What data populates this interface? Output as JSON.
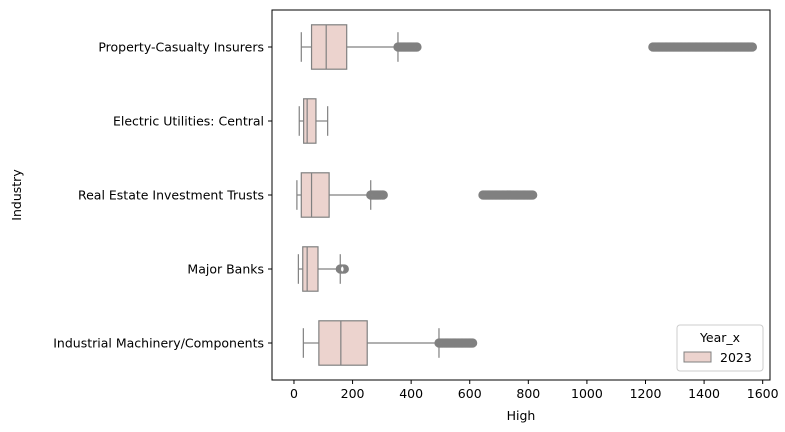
{
  "chart_data": {
    "type": "boxplot",
    "orientation": "horizontal",
    "xlabel": "High",
    "ylabel": "Industry",
    "xlim": [
      -75,
      1625
    ],
    "xticks": [
      0,
      200,
      400,
      600,
      800,
      1000,
      1200,
      1400,
      1600
    ],
    "grid": false,
    "legend": {
      "title": "Year_x",
      "placement": "lower-right",
      "entries": [
        {
          "label": "2023",
          "color": "#ecd3ce"
        }
      ]
    },
    "box_color": "#ecd3ce",
    "line_color": "#808080",
    "series": [
      {
        "name": "2023",
        "categories": [
          {
            "label": "Property-Casualty Insurers",
            "whisker_low": 25,
            "q1": 60,
            "median": 110,
            "q3": 180,
            "whisker_high": 355,
            "outlier_ranges": [
              [
                355,
                420
              ],
              [
                1225,
                1565
              ]
            ]
          },
          {
            "label": "Electric Utilities: Central",
            "whisker_low": 18,
            "q1": 33,
            "median": 45,
            "q3": 75,
            "whisker_high": 115,
            "outlier_ranges": []
          },
          {
            "label": "Real Estate Investment Trusts",
            "whisker_low": 10,
            "q1": 25,
            "median": 60,
            "q3": 120,
            "whisker_high": 262,
            "outlier_ranges": [
              [
                262,
                305
              ],
              [
                645,
                815
              ]
            ]
          },
          {
            "label": "Major Banks",
            "whisker_low": 15,
            "q1": 30,
            "median": 45,
            "q3": 82,
            "whisker_high": 158,
            "outlier_ranges": [
              [
                158,
                172
              ]
            ]
          },
          {
            "label": "Industrial Machinery/Components",
            "whisker_low": 32,
            "q1": 85,
            "median": 160,
            "q3": 250,
            "whisker_high": 495,
            "outlier_ranges": [
              [
                495,
                610
              ]
            ]
          }
        ]
      }
    ]
  }
}
